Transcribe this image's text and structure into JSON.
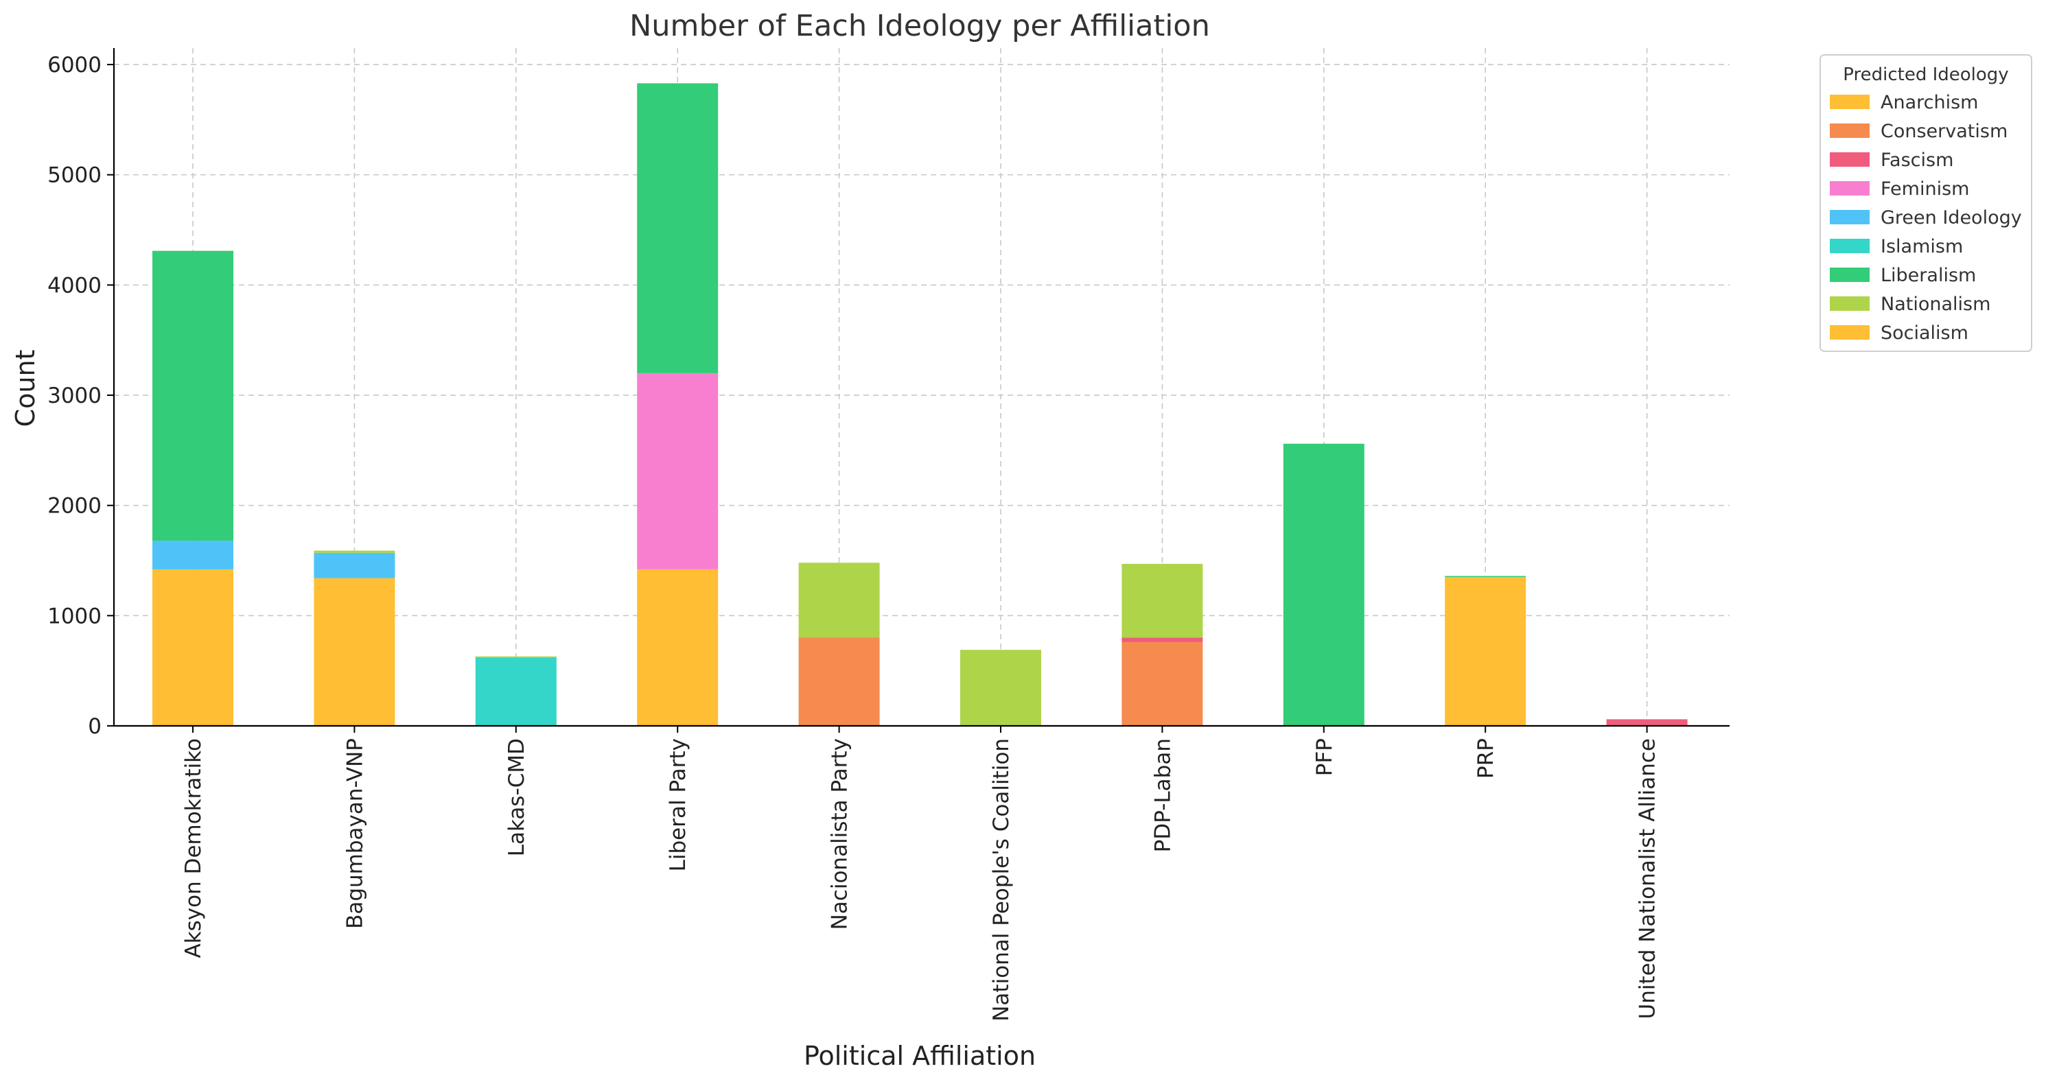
{
  "chart_data": {
    "type": "bar",
    "stacked": true,
    "title": "Number of Each Ideology per Affiliation",
    "xlabel": "Political Affiliation",
    "ylabel": "Count",
    "ylim": [
      0,
      6150
    ],
    "yticks": [
      0,
      1000,
      2000,
      3000,
      4000,
      5000,
      6000
    ],
    "grid": true,
    "legend": {
      "title": "Predicted Ideology",
      "placement": "outside-top-right"
    },
    "categories": [
      "Aksyon Demokratiko",
      "Bagumbayan-VNP",
      "Lakas-CMD",
      "Liberal Party",
      "Nacionalista Party",
      "National People's Coalition",
      "PDP-Laban",
      "PFP",
      "PRP",
      "United Nationalist Alliance"
    ],
    "series": [
      {
        "name": "Anarchism",
        "color": "#FFBE33",
        "values": [
          1420,
          1340,
          0,
          1420,
          0,
          0,
          0,
          0,
          1350,
          0
        ]
      },
      {
        "name": "Conservatism",
        "color": "#F58B4F",
        "values": [
          0,
          0,
          0,
          0,
          800,
          0,
          760,
          0,
          0,
          0
        ]
      },
      {
        "name": "Fascism",
        "color": "#F05C7C",
        "values": [
          0,
          0,
          0,
          0,
          0,
          0,
          40,
          0,
          0,
          60
        ]
      },
      {
        "name": "Feminism",
        "color": "#F87FCF",
        "values": [
          0,
          0,
          0,
          1780,
          0,
          0,
          0,
          0,
          0,
          0
        ]
      },
      {
        "name": "Green Ideology",
        "color": "#4FC3F7",
        "values": [
          260,
          230,
          0,
          0,
          0,
          0,
          0,
          0,
          0,
          0
        ]
      },
      {
        "name": "Islamism",
        "color": "#33D6C8",
        "values": [
          0,
          0,
          620,
          0,
          0,
          0,
          0,
          0,
          0,
          0
        ]
      },
      {
        "name": "Liberalism",
        "color": "#33CC78",
        "values": [
          2630,
          0,
          0,
          2630,
          0,
          0,
          0,
          2560,
          10,
          0
        ]
      },
      {
        "name": "Nationalism",
        "color": "#AED44A",
        "values": [
          0,
          20,
          10,
          0,
          680,
          690,
          670,
          0,
          0,
          0
        ]
      },
      {
        "name": "Socialism",
        "color": "#FFBE33",
        "values": [
          0,
          0,
          0,
          0,
          0,
          0,
          0,
          0,
          0,
          0
        ]
      }
    ]
  }
}
